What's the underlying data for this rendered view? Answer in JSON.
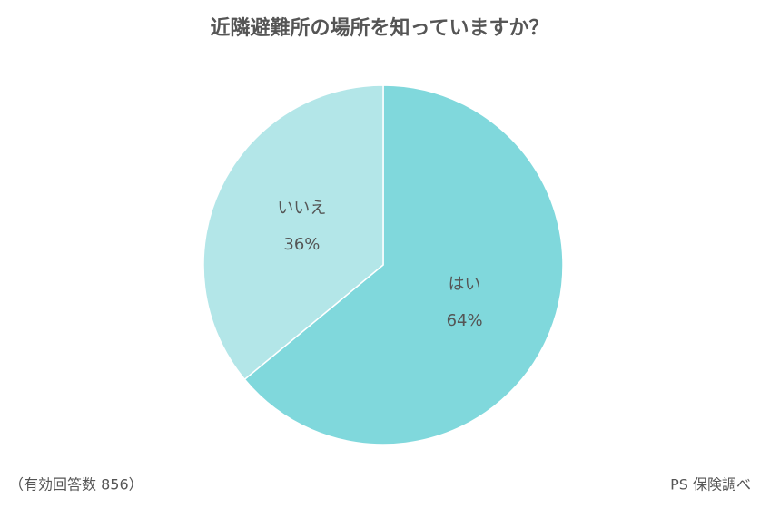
{
  "chart_data": {
    "type": "pie",
    "title": "近隣避難所の場所を知っていますか？",
    "categories": [
      "はい",
      "いいえ"
    ],
    "values": [
      64,
      36
    ],
    "value_labels": [
      "64%",
      "36%"
    ],
    "colors": [
      "#80d8dc",
      "#b3e6e8"
    ],
    "note": "（有効回答数 856）",
    "source": "PS 保険調べ"
  }
}
